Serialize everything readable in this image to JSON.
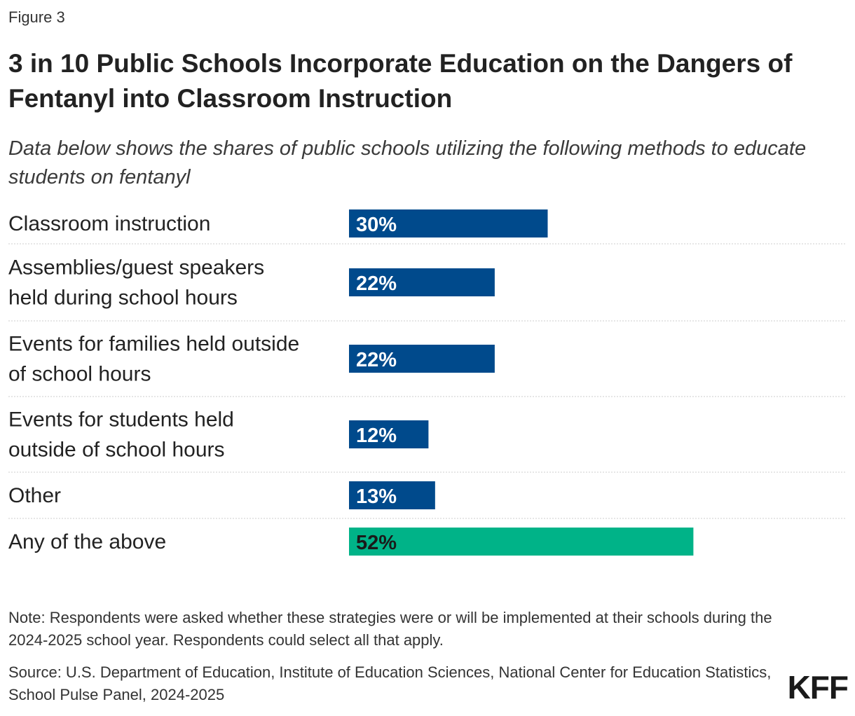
{
  "figure_label": "Figure 3",
  "title": "3 in 10 Public Schools Incorporate Education on the Dangers of Fentanyl into Classroom Instruction",
  "subtitle": "Data below shows the shares of public schools utilizing the following methods to educate students on fentanyl",
  "colors": {
    "primary_bar": "#004a8c",
    "highlight_bar": "#00b388",
    "primary_label": "#ffffff",
    "highlight_label": "#1a1a1a",
    "divider": "#cccccc"
  },
  "chart_data": {
    "type": "bar",
    "orientation": "horizontal",
    "categories": [
      [
        "Classroom instruction"
      ],
      [
        "Assemblies/guest speakers",
        "held during school hours"
      ],
      [
        "Events for families held outside",
        "of school hours"
      ],
      [
        "Events for students held",
        "outside of school hours"
      ],
      [
        "Other"
      ],
      [
        "Any of the above"
      ]
    ],
    "values": [
      30,
      22,
      22,
      12,
      13,
      52
    ],
    "value_labels": [
      "30%",
      "22%",
      "22%",
      "12%",
      "13%",
      "52%"
    ],
    "highlight": [
      false,
      false,
      false,
      false,
      false,
      true
    ],
    "unit": "%",
    "xlim": [
      0,
      100
    ],
    "grid": false,
    "legend": "none"
  },
  "note": "Note: Respondents were asked whether these strategies were or will be implemented at their schools during the 2024-2025 school year. Respondents could select all that apply.",
  "source": "Source: U.S. Department of Education, Institute of Education Sciences, National Center for Education Statistics, School Pulse Panel, 2024-2025",
  "logo": "KFF"
}
